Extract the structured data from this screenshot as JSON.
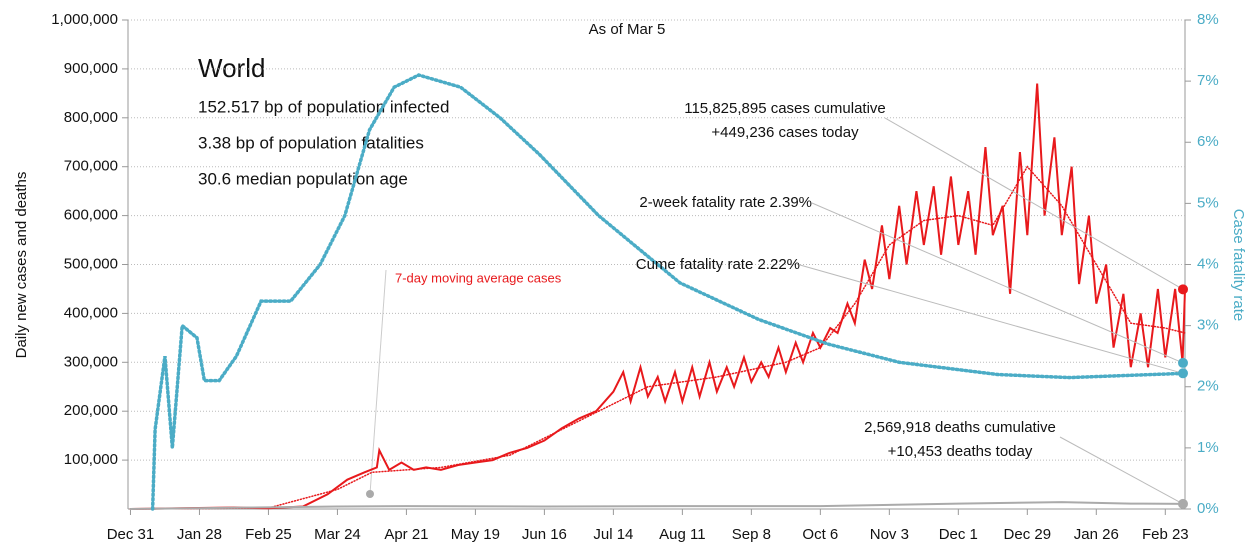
{
  "chart_data": {
    "type": "line",
    "subtitle": "As of Mar 5",
    "title": "World",
    "stats": [
      "152.517 bp of population infected",
      "3.38 bp of population fatalities",
      "30.6 median population age"
    ],
    "y_label": "Daily new cases and deaths",
    "y2_label": "Case fatality rate",
    "xlim": [
      -1,
      428
    ],
    "xticks": [
      {
        "value": 0,
        "label": "Dec 31"
      },
      {
        "value": 28,
        "label": "Jan 28"
      },
      {
        "value": 56,
        "label": "Feb 25"
      },
      {
        "value": 84,
        "label": "Mar 24"
      },
      {
        "value": 112,
        "label": "Apr 21"
      },
      {
        "value": 140,
        "label": "May 19"
      },
      {
        "value": 168,
        "label": "Jun 16"
      },
      {
        "value": 196,
        "label": "Jul 14"
      },
      {
        "value": 224,
        "label": "Aug 11"
      },
      {
        "value": 252,
        "label": "Sep 8"
      },
      {
        "value": 280,
        "label": "Oct 6"
      },
      {
        "value": 308,
        "label": "Nov 3"
      },
      {
        "value": 336,
        "label": "Dec 1"
      },
      {
        "value": 364,
        "label": "Dec 29"
      },
      {
        "value": 392,
        "label": "Jan 26"
      },
      {
        "value": 420,
        "label": "Feb 23"
      }
    ],
    "ylim": [
      0,
      1000000
    ],
    "yticks": [
      {
        "value": 100000,
        "label": "100,000"
      },
      {
        "value": 200000,
        "label": "200,000"
      },
      {
        "value": 300000,
        "label": "300,000"
      },
      {
        "value": 400000,
        "label": "400,000"
      },
      {
        "value": 500000,
        "label": "500,000"
      },
      {
        "value": 600000,
        "label": "600,000"
      },
      {
        "value": 700000,
        "label": "700,000"
      },
      {
        "value": 800000,
        "label": "800,000"
      },
      {
        "value": 900000,
        "label": "900,000"
      },
      {
        "value": 1000000,
        "label": "1,000,000"
      }
    ],
    "y2lim": [
      0,
      8
    ],
    "y2ticks": [
      {
        "value": 0,
        "label": "0%"
      },
      {
        "value": 1,
        "label": "1%"
      },
      {
        "value": 2,
        "label": "2%"
      },
      {
        "value": 3,
        "label": "3%"
      },
      {
        "value": 4,
        "label": "4%"
      },
      {
        "value": 5,
        "label": "5%"
      },
      {
        "value": 6,
        "label": "6%"
      },
      {
        "value": 7,
        "label": "7%"
      },
      {
        "value": 8,
        "label": "8%"
      }
    ],
    "grid": true,
    "series": [
      {
        "name": "Daily new cases",
        "color": "#e8191c",
        "style": "solid",
        "x": [
          0,
          28,
          42,
          56,
          70,
          80,
          88,
          95,
          100,
          101,
          105,
          110,
          115,
          120,
          126,
          133,
          140,
          147,
          154,
          161,
          168,
          175,
          182,
          189,
          196,
          200,
          203,
          207,
          210,
          214,
          217,
          221,
          224,
          228,
          231,
          235,
          238,
          242,
          245,
          249,
          252,
          256,
          259,
          263,
          266,
          270,
          273,
          277,
          280,
          284,
          287,
          291,
          294,
          298,
          301,
          305,
          308,
          312,
          315,
          319,
          322,
          326,
          329,
          333,
          336,
          340,
          343,
          347,
          350,
          354,
          357,
          361,
          364,
          368,
          371,
          375,
          378,
          382,
          385,
          389,
          392,
          396,
          399,
          403,
          406,
          410,
          413,
          417,
          420,
          424,
          427,
          428
        ],
        "values": [
          0,
          2000,
          3000,
          1500,
          5000,
          30000,
          60000,
          75000,
          85000,
          120000,
          80000,
          95000,
          80000,
          85000,
          80000,
          90000,
          95000,
          100000,
          115000,
          125000,
          140000,
          165000,
          185000,
          200000,
          240000,
          280000,
          220000,
          290000,
          230000,
          270000,
          220000,
          280000,
          220000,
          290000,
          230000,
          300000,
          240000,
          290000,
          250000,
          310000,
          260000,
          300000,
          270000,
          330000,
          280000,
          340000,
          300000,
          360000,
          330000,
          370000,
          360000,
          420000,
          380000,
          510000,
          450000,
          580000,
          470000,
          620000,
          500000,
          650000,
          540000,
          660000,
          520000,
          680000,
          540000,
          650000,
          520000,
          740000,
          560000,
          620000,
          440000,
          730000,
          560000,
          870000,
          600000,
          760000,
          560000,
          700000,
          460000,
          600000,
          420000,
          500000,
          330000,
          440000,
          290000,
          400000,
          290000,
          450000,
          310000,
          450000,
          300000,
          449236
        ]
      },
      {
        "name": "7-day moving average cases",
        "color": "#e8191c",
        "style": "dotted",
        "x": [
          0,
          56,
          84,
          98,
          126,
          154,
          182,
          210,
          238,
          266,
          280,
          294,
          308,
          322,
          336,
          350,
          364,
          378,
          392,
          406,
          420,
          428
        ],
        "values": [
          0,
          2000,
          40000,
          75000,
          85000,
          110000,
          180000,
          250000,
          270000,
          300000,
          330000,
          420000,
          540000,
          590000,
          600000,
          580000,
          700000,
          620000,
          500000,
          380000,
          370000,
          360000
        ]
      },
      {
        "name": "Daily new deaths",
        "color": "#aaaaaa",
        "style": "solid",
        "x": [
          0,
          84,
          112,
          168,
          224,
          280,
          336,
          378,
          406,
          428
        ],
        "values": [
          0,
          5000,
          6000,
          5000,
          6000,
          6000,
          11000,
          14000,
          11000,
          10453
        ]
      },
      {
        "name": "Case fatality rate",
        "color": "#4bacc6",
        "style": "dotted",
        "axis": "y2",
        "x": [
          9,
          10,
          14,
          17,
          21,
          27,
          30,
          36,
          43,
          53,
          65,
          77,
          87,
          97,
          107,
          117,
          134,
          150,
          166,
          190,
          223,
          255,
          283,
          312,
          352,
          381,
          428
        ],
        "values": [
          0,
          1.3,
          2.5,
          1.0,
          3.0,
          2.8,
          2.1,
          2.1,
          2.5,
          3.4,
          3.4,
          4.0,
          4.8,
          6.2,
          6.9,
          7.1,
          6.9,
          6.4,
          5.8,
          4.8,
          3.7,
          3.1,
          2.7,
          2.4,
          2.2,
          2.15,
          2.22
        ]
      }
    ],
    "annotations": [
      {
        "lines": [
          "115,825,895 cases cumulative",
          "+449,236 cases today"
        ],
        "value": 449236,
        "axis": "y",
        "color": "#e8191c"
      },
      {
        "lines": [
          "2-week fatality rate 2.39%"
        ],
        "value": 2.39,
        "axis": "y2",
        "color": "#4bacc6"
      },
      {
        "lines": [
          "Cume fatality rate 2.22%"
        ],
        "value": 2.22,
        "axis": "y2",
        "color": "#4bacc6"
      },
      {
        "lines": [
          "2,569,918 deaths cumulative",
          "+10,453 deaths today"
        ],
        "value": 10453,
        "axis": "y",
        "color": "#aaaaaa"
      }
    ]
  }
}
